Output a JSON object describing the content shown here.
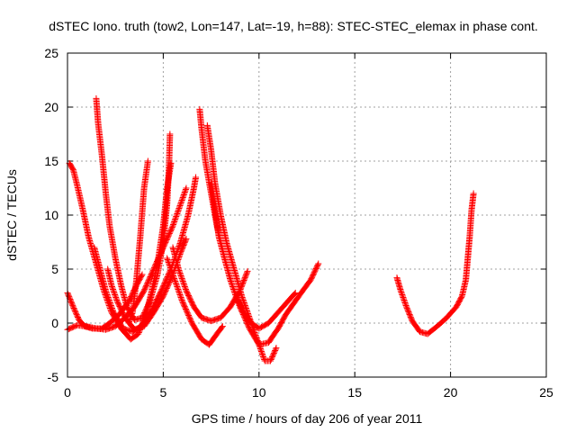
{
  "chart_data": {
    "type": "scatter",
    "title": "dSTEC Iono. truth (tow2, Lon=147, Lat=-19, h=88): STEC-STEC_elemax in phase cont.",
    "xlabel": "GPS time / hours of day 206 of year 2011",
    "ylabel": "dSTEC  / TECUs",
    "xlim": [
      0,
      25
    ],
    "ylim": [
      -5,
      25
    ],
    "xticks": [
      "0",
      "5",
      "10",
      "15",
      "20",
      "25"
    ],
    "yticks": [
      "-5",
      "0",
      "5",
      "10",
      "15",
      "20",
      "25"
    ],
    "grid": true,
    "marker": "plus",
    "colors": {
      "series": "#ff0000"
    },
    "series": [
      {
        "points": [
          [
            0.1,
            14.8
          ],
          [
            0.3,
            14.2
          ],
          [
            0.5,
            12.8
          ],
          [
            0.8,
            10.5
          ],
          [
            1.1,
            8.0
          ],
          [
            1.5,
            5.5
          ],
          [
            1.9,
            3.0
          ],
          [
            2.3,
            1.0
          ],
          [
            2.8,
            -0.5
          ],
          [
            3.3,
            -1.5
          ],
          [
            3.7,
            -1.0
          ],
          [
            4.1,
            0.8
          ],
          [
            4.4,
            3.0
          ],
          [
            4.7,
            5.5
          ],
          [
            5.0,
            9.0
          ],
          [
            5.2,
            12.5
          ],
          [
            5.4,
            14.8
          ]
        ]
      },
      {
        "points": [
          [
            1.5,
            20.8
          ],
          [
            1.6,
            18.5
          ],
          [
            1.8,
            15.5
          ],
          [
            2.0,
            12.0
          ],
          [
            2.2,
            9.0
          ],
          [
            2.5,
            6.0
          ],
          [
            2.8,
            3.5
          ],
          [
            3.1,
            1.5
          ],
          [
            3.5,
            0.3
          ],
          [
            3.9,
            0.5
          ],
          [
            4.3,
            2.0
          ],
          [
            4.7,
            4.5
          ],
          [
            5.0,
            7.5
          ],
          [
            5.2,
            11.0
          ],
          [
            5.3,
            14.5
          ],
          [
            5.35,
            17.5
          ]
        ]
      },
      {
        "points": [
          [
            3.2,
            0.0
          ],
          [
            3.4,
            1.0
          ],
          [
            3.6,
            4.0
          ],
          [
            3.8,
            8.0
          ],
          [
            4.0,
            12.5
          ],
          [
            4.2,
            15.0
          ]
        ]
      },
      {
        "points": [
          [
            1.4,
            7.0
          ],
          [
            1.7,
            5.0
          ],
          [
            2.0,
            3.0
          ],
          [
            2.4,
            1.0
          ],
          [
            2.9,
            -0.5
          ],
          [
            3.4,
            -0.8
          ],
          [
            3.9,
            -0.2
          ],
          [
            4.4,
            1.2
          ],
          [
            4.9,
            3.0
          ],
          [
            5.4,
            5.0
          ],
          [
            5.9,
            7.5
          ],
          [
            6.3,
            10.0
          ],
          [
            6.6,
            12.5
          ],
          [
            6.7,
            13.5
          ]
        ]
      },
      {
        "points": [
          [
            0.0,
            2.8
          ],
          [
            0.3,
            1.5
          ],
          [
            0.6,
            0.3
          ],
          [
            0.9,
            -0.3
          ],
          [
            1.3,
            -0.5
          ],
          [
            1.8,
            -0.5
          ],
          [
            2.2,
            0.0
          ],
          [
            2.7,
            0.8
          ],
          [
            3.2,
            2.0
          ],
          [
            3.6,
            3.5
          ],
          [
            3.9,
            4.5
          ]
        ]
      },
      {
        "points": [
          [
            0.0,
            -0.6
          ],
          [
            0.5,
            -0.2
          ],
          [
            1.0,
            -0.3
          ],
          [
            1.5,
            -0.5
          ],
          [
            2.0,
            -0.6
          ],
          [
            2.5,
            -0.3
          ],
          [
            3.0,
            0.5
          ],
          [
            3.5,
            1.5
          ],
          [
            4.0,
            3.0
          ],
          [
            4.5,
            5.0
          ],
          [
            5.0,
            7.0
          ],
          [
            5.5,
            9.0
          ],
          [
            5.9,
            11.0
          ],
          [
            6.2,
            12.5
          ]
        ]
      },
      {
        "points": [
          [
            2.1,
            5.0
          ],
          [
            2.3,
            3.5
          ],
          [
            2.6,
            2.0
          ],
          [
            3.0,
            0.5
          ],
          [
            3.5,
            -0.6
          ],
          [
            4.0,
            -0.3
          ],
          [
            4.5,
            1.0
          ],
          [
            5.0,
            2.5
          ],
          [
            5.5,
            4.5
          ],
          [
            5.9,
            6.5
          ],
          [
            6.2,
            7.8
          ]
        ]
      },
      {
        "points": [
          [
            5.5,
            7.0
          ],
          [
            5.8,
            5.0
          ],
          [
            6.2,
            3.0
          ],
          [
            6.6,
            1.5
          ],
          [
            7.0,
            0.5
          ],
          [
            7.5,
            0.2
          ],
          [
            8.0,
            0.5
          ],
          [
            8.5,
            1.5
          ],
          [
            9.0,
            3.0
          ],
          [
            9.4,
            4.8
          ]
        ]
      },
      {
        "points": [
          [
            5.2,
            6.0
          ],
          [
            5.6,
            4.0
          ],
          [
            6.0,
            2.0
          ],
          [
            6.5,
            0.0
          ],
          [
            7.0,
            -1.5
          ],
          [
            7.4,
            -2.0
          ],
          [
            7.8,
            -1.0
          ],
          [
            8.1,
            -0.3
          ]
        ]
      },
      {
        "points": [
          [
            6.9,
            19.8
          ],
          [
            7.0,
            18.0
          ],
          [
            7.2,
            15.0
          ],
          [
            7.5,
            12.0
          ],
          [
            7.8,
            9.0
          ],
          [
            8.2,
            6.0
          ],
          [
            8.6,
            3.5
          ],
          [
            9.0,
            1.5
          ],
          [
            9.5,
            -0.5
          ],
          [
            10.0,
            -2.0
          ],
          [
            10.5,
            -1.8
          ],
          [
            10.8,
            -1.0
          ],
          [
            11.0,
            -0.5
          ],
          [
            11.4,
            0.8
          ],
          [
            11.8,
            1.8
          ],
          [
            12.2,
            2.8
          ],
          [
            12.7,
            4.0
          ],
          [
            13.1,
            5.5
          ]
        ]
      },
      {
        "points": [
          [
            7.3,
            18.3
          ],
          [
            7.5,
            16.0
          ],
          [
            7.7,
            13.0
          ],
          [
            8.0,
            10.0
          ],
          [
            8.3,
            7.5
          ],
          [
            8.7,
            5.0
          ],
          [
            9.1,
            2.5
          ],
          [
            9.5,
            0.5
          ],
          [
            9.9,
            -1.5
          ],
          [
            10.3,
            -3.5
          ],
          [
            10.6,
            -3.5
          ],
          [
            10.9,
            -2.3
          ]
        ]
      },
      {
        "points": [
          [
            7.5,
            13.0
          ],
          [
            7.7,
            10.5
          ],
          [
            7.9,
            8.0
          ],
          [
            8.2,
            6.0
          ],
          [
            8.5,
            4.0
          ],
          [
            8.8,
            2.5
          ],
          [
            9.2,
            1.0
          ],
          [
            9.6,
            0.0
          ],
          [
            10.0,
            -0.5
          ],
          [
            10.5,
            0.0
          ],
          [
            11.0,
            1.0
          ],
          [
            11.5,
            2.0
          ],
          [
            11.9,
            2.8
          ]
        ]
      },
      {
        "points": [
          [
            17.2,
            4.2
          ],
          [
            17.4,
            3.0
          ],
          [
            17.7,
            1.5
          ],
          [
            18.0,
            0.2
          ],
          [
            18.4,
            -0.8
          ],
          [
            18.8,
            -1.0
          ],
          [
            19.3,
            -0.3
          ],
          [
            19.8,
            0.5
          ],
          [
            20.3,
            1.5
          ],
          [
            20.6,
            2.5
          ],
          [
            20.8,
            4.0
          ],
          [
            20.9,
            6.0
          ],
          [
            21.0,
            8.0
          ],
          [
            21.1,
            10.5
          ],
          [
            21.2,
            12.0
          ]
        ]
      }
    ]
  }
}
